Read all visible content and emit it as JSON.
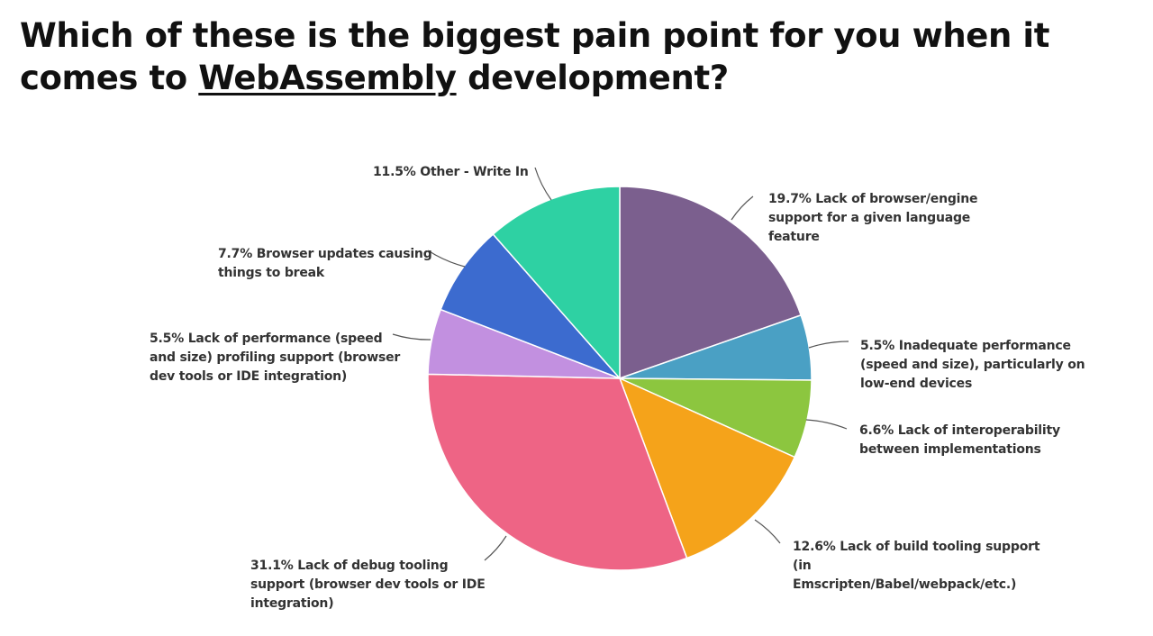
{
  "slide": {
    "title_prefix": "Which of these is the biggest pain point for you when it comes to",
    "title_link": "WebAssembly",
    "title_suffix": " development?"
  },
  "chart_data": {
    "type": "pie",
    "title": "",
    "start": "12 o'clock, clockwise",
    "slices": [
      {
        "percent": 19.7,
        "label": "19.7% Lack of browser/engine support for a given language feature",
        "label_lines": [
          "19.7% Lack of browser/engine",
          "support for a given language",
          "feature"
        ],
        "color": "#7b5f8e"
      },
      {
        "percent": 5.5,
        "label": "5.5% Inadequate performance (speed and size), particularly on low-end devices",
        "label_lines": [
          "5.5% Inadequate performance",
          "(speed and size), particularly on",
          "low-end devices"
        ],
        "color": "#4aa0c4"
      },
      {
        "percent": 6.6,
        "label": "6.6% Lack of interoperability between implementations",
        "label_lines": [
          "6.6% Lack of interoperability",
          "between implementations"
        ],
        "color": "#8cc63f"
      },
      {
        "percent": 12.6,
        "label": "12.6% Lack of build tooling support (in Emscripten/Babel/webpack/etc.)",
        "label_lines": [
          "12.6% Lack of build tooling support",
          "(in",
          "Emscripten/Babel/webpack/etc.)"
        ],
        "color": "#f5a31a"
      },
      {
        "percent": 31.1,
        "label": "31.1% Lack of debug tooling support (browser dev tools or IDE integration)",
        "label_lines": [
          "31.1% Lack of debug tooling",
          "support (browser dev tools or IDE",
          "integration)"
        ],
        "color": "#ee6485"
      },
      {
        "percent": 5.5,
        "label": "5.5% Lack of performance (speed and size) profiling support (browser dev tools or IDE integration)",
        "label_lines": [
          "5.5% Lack of performance (speed",
          "and size) profiling support (browser",
          "dev tools or IDE integration)"
        ],
        "color": "#c290e0"
      },
      {
        "percent": 7.7,
        "label": "7.7% Browser updates causing things to break",
        "label_lines": [
          "7.7% Browser updates causing",
          "things to break"
        ],
        "color": "#3c6bcf"
      },
      {
        "percent": 11.5,
        "label": "11.5% Other - Write In",
        "label_lines": [
          "11.5% Other - Write In"
        ],
        "color": "#2ed1a3"
      }
    ]
  }
}
